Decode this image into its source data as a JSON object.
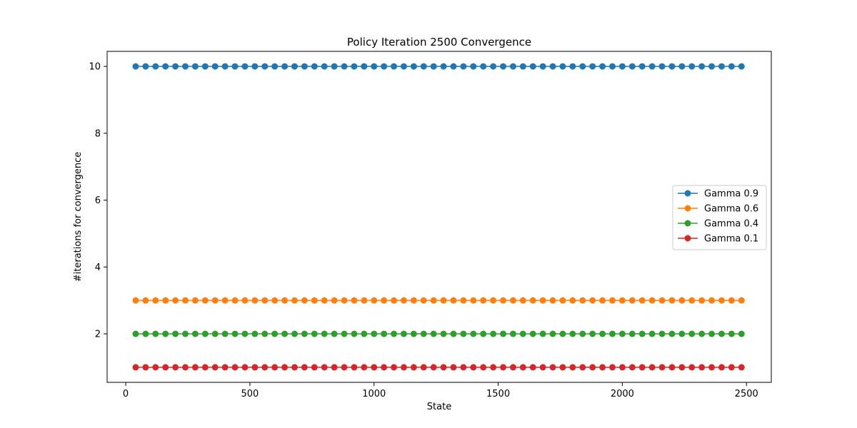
{
  "chart_data": {
    "type": "line",
    "title": "Policy Iteration 2500  Convergence",
    "xlabel": "State",
    "ylabel": "#iterations for convergence",
    "xlim": [
      -75,
      2600
    ],
    "ylim": [
      0.55,
      10.45
    ],
    "x_ticks": [
      0,
      500,
      1000,
      1500,
      2000,
      2500
    ],
    "x_tick_labels": [
      "0",
      "500",
      "1000",
      "1500",
      "2000",
      "2500"
    ],
    "y_ticks": [
      2,
      4,
      6,
      8,
      10
    ],
    "y_tick_labels": [
      "2",
      "4",
      "6",
      "8",
      "10"
    ],
    "grid": false,
    "legend_position": "center-right",
    "marker": "circle",
    "x": [
      40,
      80,
      120,
      160,
      200,
      240,
      280,
      320,
      360,
      400,
      440,
      480,
      520,
      560,
      600,
      640,
      680,
      720,
      760,
      800,
      840,
      880,
      920,
      960,
      1000,
      1040,
      1080,
      1120,
      1160,
      1200,
      1240,
      1280,
      1320,
      1360,
      1400,
      1440,
      1480,
      1520,
      1560,
      1600,
      1640,
      1680,
      1720,
      1760,
      1800,
      1840,
      1880,
      1920,
      1960,
      2000,
      2040,
      2080,
      2120,
      2160,
      2200,
      2240,
      2280,
      2320,
      2360,
      2400,
      2440,
      2480
    ],
    "series": [
      {
        "name": "Gamma 0.9",
        "color": "#1f77b4",
        "value": 10
      },
      {
        "name": "Gamma 0.6",
        "color": "#ff7f0e",
        "value": 3
      },
      {
        "name": "Gamma 0.4",
        "color": "#2ca02c",
        "value": 2
      },
      {
        "name": "Gamma 0.1",
        "color": "#d62728",
        "value": 1
      }
    ]
  }
}
